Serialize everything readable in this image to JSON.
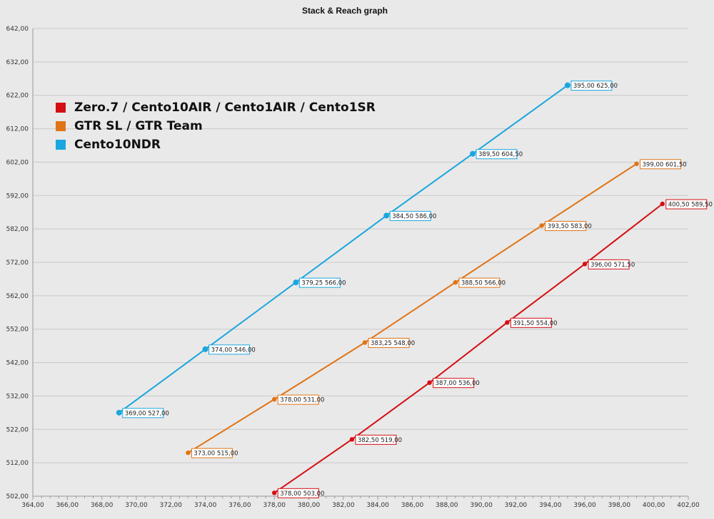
{
  "chart_data": {
    "type": "line",
    "title": "Stack & Reach graph",
    "xlim": [
      364,
      402
    ],
    "ylim": [
      502,
      642
    ],
    "x_ticks": [
      "364,00",
      "366,00",
      "368,00",
      "370,00",
      "372,00",
      "374,00",
      "376,00",
      "378,00",
      "380,00",
      "382,00",
      "384,00",
      "386,00",
      "388,00",
      "390,00",
      "392,00",
      "394,00",
      "396,00",
      "398,00",
      "400,00",
      "402,00"
    ],
    "y_ticks": [
      "502,00",
      "512,00",
      "522,00",
      "532,00",
      "542,00",
      "552,00",
      "562,00",
      "572,00",
      "582,00",
      "592,00",
      "602,00",
      "612,00",
      "622,00",
      "632,00",
      "642,00"
    ],
    "grid": "horizontal",
    "legend_position": "top-left",
    "series": [
      {
        "name": "Zero.7 / Cento10AIR / Cento1AIR / Cento1SR",
        "color": "#d40f14",
        "points": [
          {
            "x": 378.0,
            "y": 503.0,
            "label": "378,00 503,00"
          },
          {
            "x": 382.5,
            "y": 519.0,
            "label": "382,50 519,00"
          },
          {
            "x": 387.0,
            "y": 536.0,
            "label": "387,00 536,00"
          },
          {
            "x": 391.5,
            "y": 554.0,
            "label": "391,50 554,00"
          },
          {
            "x": 396.0,
            "y": 571.5,
            "label": "396,00 571,50"
          },
          {
            "x": 400.5,
            "y": 589.5,
            "label": "400,50 589,50"
          }
        ]
      },
      {
        "name": "GTR SL / GTR Team",
        "color": "#e07314",
        "points": [
          {
            "x": 373.0,
            "y": 515.0,
            "label": "373,00 515,00"
          },
          {
            "x": 378.0,
            "y": 531.0,
            "label": "378,00 531,00"
          },
          {
            "x": 383.25,
            "y": 548.0,
            "label": "383,25 548,00"
          },
          {
            "x": 388.5,
            "y": 566.0,
            "label": "388,50 566,00"
          },
          {
            "x": 393.5,
            "y": 583.0,
            "label": "393,50 583,00"
          },
          {
            "x": 399.0,
            "y": 601.5,
            "label": "399,00 601,50"
          }
        ]
      },
      {
        "name": "Cento10NDR",
        "color": "#1aa6de",
        "points": [
          {
            "x": 369.0,
            "y": 527.0,
            "label": "369,00 527,00"
          },
          {
            "x": 374.0,
            "y": 546.0,
            "label": "374,00 546,00"
          },
          {
            "x": 379.25,
            "y": 566.0,
            "label": "379,25 566,00"
          },
          {
            "x": 384.5,
            "y": 586.0,
            "label": "384,50 586,00"
          },
          {
            "x": 389.5,
            "y": 604.5,
            "label": "389,50 604,50"
          },
          {
            "x": 395.0,
            "y": 625.0,
            "label": "395,00 625,00"
          }
        ]
      }
    ]
  }
}
